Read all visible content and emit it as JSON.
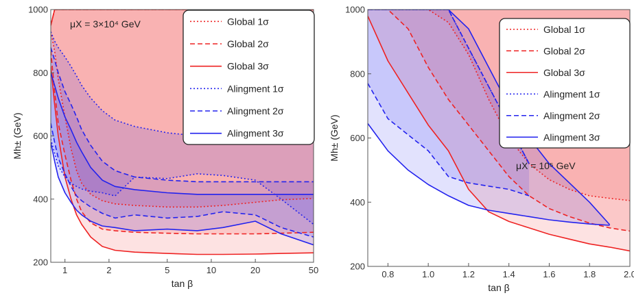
{
  "colors": {
    "red": "#ee2222",
    "blue": "#2222ee"
  },
  "legend": {
    "entries": [
      {
        "label": "Global 1σ",
        "color": "#ee2222",
        "style": "dotted"
      },
      {
        "label": "Global 2σ",
        "color": "#ee2222",
        "style": "dashed"
      },
      {
        "label": "Global 3σ",
        "color": "#ee2222",
        "style": "solid"
      },
      {
        "label": "Alingment 1σ",
        "color": "#2222ee",
        "style": "dotted"
      },
      {
        "label": "Alingment 2σ",
        "color": "#2222ee",
        "style": "dashed"
      },
      {
        "label": "Alingment 3σ",
        "color": "#2222ee",
        "style": "solid"
      }
    ]
  },
  "chart_data": [
    {
      "type": "area",
      "annotation": "μX = 3×10⁴ GeV",
      "xlabel": "tan β",
      "ylabel": "Mh± (GeV)",
      "xscale": "log",
      "xlim": [
        0.8,
        50
      ],
      "ylim": [
        200,
        1000
      ],
      "xticks": [
        1,
        2,
        5,
        10,
        20,
        50
      ],
      "xtick_labels": [
        "1",
        "2",
        "5",
        "10",
        "20",
        "50"
      ],
      "yticks": [
        200,
        400,
        600,
        800,
        1000
      ],
      "ytick_labels": [
        "200",
        "400",
        "600",
        "800",
        "1000"
      ],
      "legend_position": "top-right",
      "series": [
        {
          "name": "Global 1σ",
          "color": "#ee2222",
          "style": "dotted",
          "x": [
            0.8,
            0.85,
            0.9,
            1.0,
            1.1,
            1.2,
            1.3,
            1.5,
            1.8,
            2.2,
            3,
            5,
            8,
            12,
            20,
            30,
            50
          ],
          "upper": [
            950,
            1000,
            1000,
            1000,
            1000,
            1000,
            1000,
            1000,
            1000,
            1000,
            1000,
            1000,
            1000,
            1000,
            1000,
            1000,
            1000
          ],
          "lower": [
            930,
            870,
            780,
            660,
            560,
            490,
            450,
            415,
            395,
            385,
            380,
            375,
            375,
            380,
            390,
            398,
            402
          ]
        },
        {
          "name": "Global 2σ",
          "color": "#ee2222",
          "style": "dashed",
          "x": [
            0.8,
            0.85,
            0.9,
            1.0,
            1.1,
            1.2,
            1.3,
            1.5,
            1.8,
            2.2,
            3,
            5,
            8,
            12,
            20,
            30,
            50
          ],
          "upper": [
            950,
            1000,
            1000,
            1000,
            1000,
            1000,
            1000,
            1000,
            1000,
            1000,
            1000,
            1000,
            1000,
            1000,
            1000,
            1000,
            1000
          ],
          "lower": [
            870,
            740,
            640,
            540,
            460,
            400,
            360,
            325,
            305,
            300,
            295,
            292,
            290,
            290,
            290,
            292,
            295
          ]
        },
        {
          "name": "Global 3σ",
          "color": "#ee2222",
          "style": "solid",
          "x": [
            0.8,
            0.85,
            0.9,
            1.0,
            1.1,
            1.2,
            1.3,
            1.5,
            1.8,
            2.2,
            3,
            5,
            8,
            12,
            20,
            30,
            50
          ],
          "upper": [
            950,
            1000,
            1000,
            1000,
            1000,
            1000,
            1000,
            1000,
            1000,
            1000,
            1000,
            1000,
            1000,
            1000,
            1000,
            1000,
            1000
          ],
          "lower": [
            820,
            700,
            600,
            470,
            400,
            350,
            320,
            280,
            250,
            238,
            232,
            228,
            225,
            225,
            226,
            228,
            230
          ]
        },
        {
          "name": "Alingment 1σ",
          "color": "#2222ee",
          "style": "dotted",
          "x": [
            0.8,
            0.85,
            0.9,
            1.0,
            1.1,
            1.2,
            1.3,
            1.5,
            1.8,
            2.2,
            3,
            5,
            8,
            12,
            20,
            30,
            50
          ],
          "upper": [
            930,
            900,
            880,
            850,
            820,
            790,
            760,
            720,
            680,
            650,
            630,
            610,
            600,
            600,
            600,
            600,
            600
          ],
          "lower": [
            590,
            545,
            505,
            470,
            450,
            440,
            432,
            425,
            420,
            410,
            470,
            465,
            480,
            475,
            460,
            400,
            320
          ]
        },
        {
          "name": "Alingment 2σ",
          "color": "#2222ee",
          "style": "dashed",
          "x": [
            0.8,
            0.85,
            0.9,
            1.0,
            1.1,
            1.2,
            1.3,
            1.5,
            1.8,
            2.2,
            3,
            5,
            8,
            12,
            20,
            30,
            50
          ],
          "upper": [
            880,
            840,
            800,
            740,
            700,
            660,
            620,
            570,
            520,
            490,
            470,
            460,
            455,
            455,
            455,
            455,
            455
          ],
          "lower": [
            640,
            580,
            530,
            480,
            440,
            410,
            395,
            375,
            355,
            340,
            350,
            340,
            345,
            360,
            350,
            310,
            280
          ]
        },
        {
          "name": "Alingment 3σ",
          "color": "#2222ee",
          "style": "solid",
          "x": [
            0.8,
            0.85,
            0.9,
            1.0,
            1.1,
            1.2,
            1.3,
            1.5,
            1.8,
            2.2,
            3,
            5,
            8,
            12,
            20,
            30,
            50
          ],
          "upper": [
            800,
            760,
            720,
            660,
            620,
            580,
            550,
            500,
            460,
            440,
            430,
            420,
            415,
            415,
            415,
            415,
            415
          ],
          "lower": [
            580,
            520,
            470,
            420,
            390,
            365,
            350,
            330,
            315,
            310,
            300,
            305,
            300,
            310,
            330,
            290,
            255
          ]
        }
      ]
    },
    {
      "type": "area",
      "annotation": "μX = 10⁵ GeV",
      "xlabel": "tan β",
      "ylabel": "Mh± (GeV)",
      "xscale": "linear",
      "xlim": [
        0.7,
        2.0
      ],
      "ylim": [
        200,
        1000
      ],
      "xticks": [
        0.8,
        1.0,
        1.2,
        1.4,
        1.6,
        1.8,
        2.0
      ],
      "xtick_labels": [
        "0.8",
        "1.0",
        "1.2",
        "1.4",
        "1.6",
        "1.8",
        "2.0"
      ],
      "yticks": [
        200,
        400,
        600,
        800,
        1000
      ],
      "ytick_labels": [
        "200",
        "400",
        "600",
        "800",
        "1000"
      ],
      "legend_position": "top-right",
      "series": [
        {
          "name": "Global 1σ",
          "color": "#ee2222",
          "style": "dotted",
          "x": [
            0.7,
            0.8,
            0.9,
            1.0,
            1.1,
            1.2,
            1.3,
            1.4,
            1.5,
            1.6,
            1.7,
            1.8,
            1.9,
            2.0
          ],
          "upper": [
            1000,
            1000,
            1000,
            1000,
            1000,
            1000,
            1000,
            1000,
            1000,
            1000,
            1000,
            1000,
            1000,
            1000
          ],
          "lower": [
            1000,
            1000,
            1000,
            1000,
            960,
            860,
            720,
            600,
            520,
            470,
            440,
            420,
            412,
            405
          ]
        },
        {
          "name": "Global 2σ",
          "color": "#ee2222",
          "style": "dashed",
          "x": [
            0.7,
            0.8,
            0.9,
            1.0,
            1.1,
            1.2,
            1.3,
            1.4,
            1.5,
            1.6,
            1.7,
            1.8,
            1.9,
            2.0
          ],
          "upper": [
            1000,
            1000,
            1000,
            1000,
            1000,
            1000,
            1000,
            1000,
            1000,
            1000,
            1000,
            1000,
            1000,
            1000
          ],
          "lower": [
            1000,
            1000,
            940,
            820,
            720,
            640,
            560,
            480,
            420,
            380,
            355,
            335,
            320,
            310
          ]
        },
        {
          "name": "Global 3σ",
          "color": "#ee2222",
          "style": "solid",
          "x": [
            0.7,
            0.8,
            0.9,
            1.0,
            1.1,
            1.2,
            1.3,
            1.4,
            1.5,
            1.6,
            1.7,
            1.8,
            1.9,
            2.0
          ],
          "upper": [
            1000,
            1000,
            1000,
            1000,
            1000,
            1000,
            1000,
            1000,
            1000,
            1000,
            1000,
            1000,
            1000,
            1000
          ],
          "lower": [
            980,
            840,
            740,
            640,
            560,
            440,
            370,
            340,
            320,
            300,
            285,
            270,
            260,
            248
          ]
        },
        {
          "name": "Alingment 1σ",
          "color": "#2222ee",
          "style": "dotted",
          "x": [
            0.7,
            0.8,
            0.9,
            1.0,
            1.1,
            1.2,
            1.3,
            1.4,
            1.5
          ],
          "upper": [
            1000,
            1000,
            1000,
            1000,
            1000,
            880,
            760,
            640,
            520
          ],
          "lower": [
            1000,
            1000,
            1000,
            1000,
            1000,
            880,
            760,
            640,
            520
          ]
        },
        {
          "name": "Alingment 2σ",
          "color": "#2222ee",
          "style": "dashed",
          "x": [
            0.7,
            0.8,
            0.9,
            1.0,
            1.1,
            1.2,
            1.3,
            1.4,
            1.5
          ],
          "upper": [
            1000,
            1000,
            1000,
            1000,
            1000,
            880,
            760,
            640,
            520
          ],
          "lower": [
            770,
            660,
            610,
            560,
            480,
            460,
            450,
            440,
            420
          ]
        },
        {
          "name": "Alingment 3σ",
          "color": "#2222ee",
          "style": "solid",
          "x": [
            0.7,
            0.8,
            0.9,
            1.0,
            1.1,
            1.2,
            1.3,
            1.4,
            1.5,
            1.6,
            1.7,
            1.8,
            1.9
          ],
          "upper": [
            1000,
            1000,
            1000,
            1000,
            1000,
            940,
            820,
            700,
            600,
            520,
            460,
            400,
            330
          ],
          "lower": [
            645,
            560,
            500,
            455,
            420,
            390,
            375,
            365,
            355,
            345,
            338,
            332,
            328
          ]
        }
      ]
    }
  ]
}
